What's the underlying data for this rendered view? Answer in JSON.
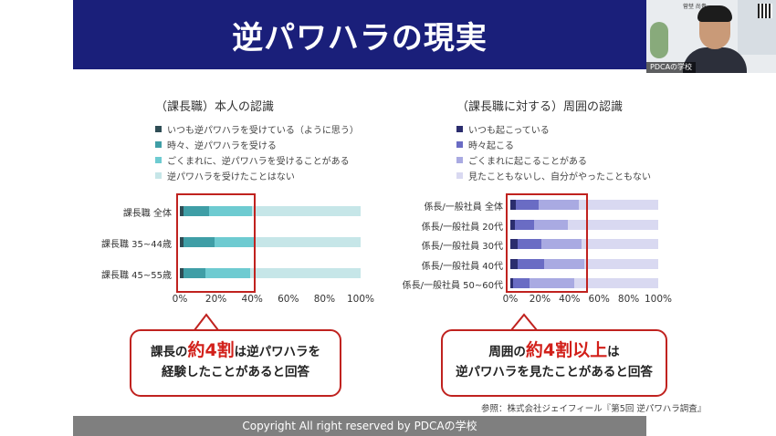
{
  "slide": {
    "title": "逆パワハラの現実",
    "footer": "Copyright All right reserved by PDCAの学校",
    "source": "参照：株式会社ジェイフィール『第5回 逆パワハラ調査』"
  },
  "camera": {
    "label": "PDCAの学校",
    "name_card": "菅埜 尚貴"
  },
  "left_chart": {
    "title": "（課長職）本人の認識",
    "legend": [
      {
        "label": "いつも逆パワハラを受けている（ように思う）",
        "color": "#2f4d55"
      },
      {
        "label": "時々、逆パワハラを受ける",
        "color": "#3f9ea6"
      },
      {
        "label": "ごくまれに、逆パワハラを受けることがある",
        "color": "#6ecbd1"
      },
      {
        "label": "逆パワハラを受けたことはない",
        "color": "#c6e6e8"
      }
    ],
    "ticks": [
      "0%",
      "20%",
      "40%",
      "60%",
      "80%",
      "100%"
    ]
  },
  "right_chart": {
    "title": "（課長職に対する）周囲の認識",
    "legend": [
      {
        "label": "いつも起こっている",
        "color": "#2b2d6e"
      },
      {
        "label": "時々起こる",
        "color": "#6a6cc4"
      },
      {
        "label": "ごくまれに起こることがある",
        "color": "#a9aae2"
      },
      {
        "label": "見たこともないし、自分がやったこともない",
        "color": "#d9d9f1"
      }
    ],
    "ticks": [
      "0%",
      "20%",
      "40%",
      "60%",
      "80%",
      "100%"
    ]
  },
  "chart_data": [
    {
      "type": "bar",
      "title": "（課長職）本人の認識",
      "orientation": "horizontal",
      "stacked": true,
      "categories": [
        "課長職 全体",
        "課長職 35~44歳",
        "課長職 45~55歳"
      ],
      "series": [
        {
          "name": "いつも逆パワハラを受けている（ように思う）",
          "values": [
            2,
            2,
            2
          ]
        },
        {
          "name": "時々、逆パワハラを受ける",
          "values": [
            14,
            17,
            12
          ]
        },
        {
          "name": "ごくまれに、逆パワハラを受けることがある",
          "values": [
            24,
            22,
            25
          ]
        },
        {
          "name": "逆パワハラを受けたことはない",
          "values": [
            60,
            59,
            61
          ]
        }
      ],
      "xlim": [
        0,
        100
      ]
    },
    {
      "type": "bar",
      "title": "（課長職に対する）周囲の認識",
      "orientation": "horizontal",
      "stacked": true,
      "categories": [
        "係長/一般社員 全体",
        "係長/一般社員 20代",
        "係長/一般社員 30代",
        "係長/一般社員 40代",
        "係長/一般社員 50~60代"
      ],
      "series": [
        {
          "name": "いつも起こっている",
          "values": [
            4,
            3,
            5,
            5,
            2
          ]
        },
        {
          "name": "時々起こる",
          "values": [
            15,
            13,
            16,
            18,
            11
          ]
        },
        {
          "name": "ごくまれに起こることがある",
          "values": [
            27,
            23,
            27,
            27,
            30
          ]
        },
        {
          "name": "見たこともないし、自分がやったこともない",
          "values": [
            54,
            61,
            52,
            50,
            57
          ]
        }
      ],
      "xlim": [
        0,
        100
      ]
    }
  ],
  "callouts": {
    "left": {
      "pre": "課長の",
      "big": "約4割",
      "post": "は逆パワハラを",
      "line2": "経験したことがあると回答"
    },
    "right": {
      "pre": "周囲の",
      "big": "約4割以上",
      "post": "は",
      "line2": "逆パワハラを見たことがあると回答"
    }
  }
}
